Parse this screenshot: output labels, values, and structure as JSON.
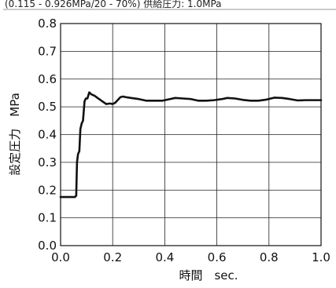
{
  "header_caption": "(0.115 - 0.926MPa/20 - 70%) 供給圧力: 1.0MPa",
  "chart_data": {
    "type": "line",
    "xlabel": "時間　sec.",
    "ylabel": "設定圧力　MPa",
    "xlim": [
      0.0,
      1.0
    ],
    "ylim": [
      0.0,
      0.8
    ],
    "xticks": [
      "0.0",
      "0.2",
      "0.4",
      "0.6",
      "0.8",
      "1.0"
    ],
    "yticks": [
      "0.0",
      "0.1",
      "0.2",
      "0.3",
      "0.4",
      "0.5",
      "0.6",
      "0.7",
      "0.8"
    ],
    "grid": true,
    "series": [
      {
        "color": "#111111",
        "x": [
          0.0,
          0.055,
          0.06,
          0.063,
          0.067,
          0.072,
          0.076,
          0.081,
          0.086,
          0.092,
          0.097,
          0.103,
          0.11,
          0.118,
          0.13,
          0.145,
          0.16,
          0.175,
          0.19,
          0.2,
          0.21,
          0.22,
          0.23,
          0.24,
          0.25,
          0.27,
          0.3,
          0.33,
          0.36,
          0.39,
          0.42,
          0.44,
          0.47,
          0.5,
          0.53,
          0.56,
          0.59,
          0.62,
          0.64,
          0.67,
          0.7,
          0.73,
          0.76,
          0.79,
          0.82,
          0.85,
          0.88,
          0.91,
          0.94,
          0.97,
          1.0
        ],
        "y": [
          0.175,
          0.175,
          0.18,
          0.3,
          0.33,
          0.34,
          0.42,
          0.44,
          0.45,
          0.52,
          0.53,
          0.53,
          0.552,
          0.545,
          0.54,
          0.53,
          0.52,
          0.51,
          0.512,
          0.51,
          0.515,
          0.525,
          0.535,
          0.537,
          0.535,
          0.532,
          0.528,
          0.522,
          0.522,
          0.522,
          0.528,
          0.532,
          0.53,
          0.528,
          0.522,
          0.522,
          0.524,
          0.528,
          0.532,
          0.53,
          0.525,
          0.522,
          0.522,
          0.526,
          0.533,
          0.532,
          0.528,
          0.523,
          0.524,
          0.524,
          0.524
        ]
      }
    ]
  }
}
